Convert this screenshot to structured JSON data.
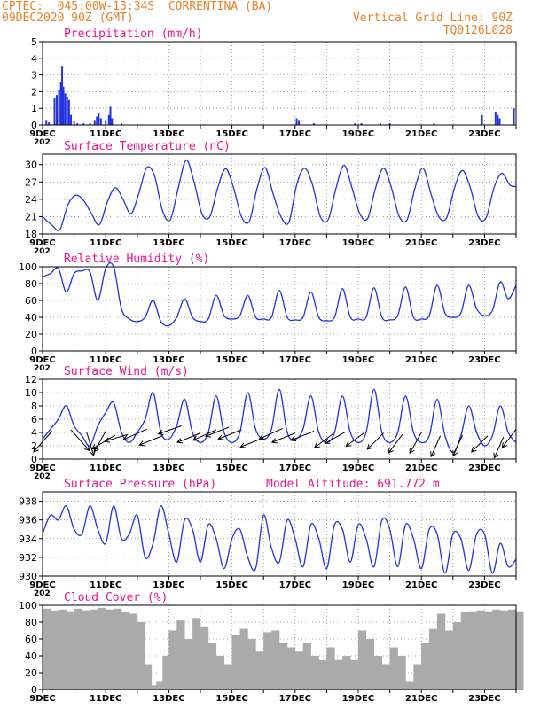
{
  "header": {
    "line1_left": "CPTEC:  045:00W-13:34S  CORRENTINA (BA)",
    "line2_left": "09DEC2020 90Z (GMT)",
    "line1_right": "Vertical Grid Line: 90Z",
    "line2_right": "TQ0126L028"
  },
  "colors": {
    "header": "#e8822a",
    "title": "#e8168c",
    "line": "#2233dd",
    "bar": "#2233dd",
    "cloud": "#aaaaaa",
    "wind_arrow": "#000000"
  },
  "x_axis": {
    "tick_labels": [
      "9DEC",
      "11DEC",
      "13DEC",
      "15DEC",
      "17DEC",
      "19DEC",
      "21DEC",
      "23DEC"
    ],
    "overlap_fragment": "202"
  },
  "chart_data": [
    {
      "type": "bar",
      "title": "Precipitation (mm/h)",
      "ylim": [
        0,
        5
      ],
      "yticks": [
        0,
        1,
        2,
        3,
        4,
        5
      ],
      "grid": true,
      "x_range_days": [
        0,
        15
      ],
      "values": [
        [
          0.12,
          0.3
        ],
        [
          0.2,
          0.15
        ],
        [
          0.38,
          1.6
        ],
        [
          0.45,
          1.8
        ],
        [
          0.52,
          2.1
        ],
        [
          0.58,
          2.6
        ],
        [
          0.62,
          3.5
        ],
        [
          0.66,
          2.3
        ],
        [
          0.72,
          1.9
        ],
        [
          0.78,
          1.7
        ],
        [
          0.84,
          1.5
        ],
        [
          0.9,
          0.6
        ],
        [
          1.0,
          0.2
        ],
        [
          1.1,
          0.1
        ],
        [
          1.3,
          0.1
        ],
        [
          1.5,
          0.1
        ],
        [
          1.65,
          0.3
        ],
        [
          1.72,
          0.5
        ],
        [
          1.78,
          0.7
        ],
        [
          1.85,
          0.4
        ],
        [
          2.0,
          0.3
        ],
        [
          2.1,
          0.6
        ],
        [
          2.15,
          1.1
        ],
        [
          2.2,
          0.4
        ],
        [
          2.5,
          0.1
        ],
        [
          8.05,
          0.4
        ],
        [
          8.12,
          0.3
        ],
        [
          8.6,
          0.1
        ],
        [
          9.9,
          0.1
        ],
        [
          10.1,
          0.1
        ],
        [
          10.7,
          0.1
        ],
        [
          11.0,
          0.1
        ],
        [
          12.4,
          0.1
        ],
        [
          13.92,
          0.6
        ],
        [
          14.35,
          0.8
        ],
        [
          14.42,
          0.6
        ],
        [
          14.48,
          0.4
        ],
        [
          14.93,
          1.0
        ]
      ]
    },
    {
      "type": "line",
      "title": "Surface Temperature (nC)",
      "ylim": [
        18,
        31.8
      ],
      "yticks": [
        18,
        21,
        24,
        27,
        30
      ],
      "grid": true,
      "x": [
        0,
        0.3,
        0.55,
        0.8,
        1.05,
        1.3,
        1.55,
        1.8,
        2.05,
        2.3,
        2.55,
        2.8,
        3.05,
        3.3,
        3.55,
        3.8,
        4.05,
        4.3,
        4.55,
        4.8,
        5.05,
        5.3,
        5.55,
        5.8,
        6.05,
        6.3,
        6.55,
        6.8,
        7.05,
        7.3,
        7.55,
        7.8,
        8.05,
        8.3,
        8.55,
        8.8,
        9.05,
        9.3,
        9.55,
        9.8,
        10.05,
        10.3,
        10.55,
        10.8,
        11.05,
        11.3,
        11.55,
        11.8,
        12.05,
        12.3,
        12.55,
        12.8,
        13.05,
        13.3,
        13.55,
        13.8,
        14.05,
        14.3,
        14.55,
        14.8,
        15.0
      ],
      "y": [
        21,
        19.5,
        18.8,
        23,
        24.7,
        23.8,
        21.5,
        19.6,
        23.5,
        26,
        24,
        21.5,
        25,
        29.5,
        28,
        22,
        20.5,
        26,
        30.8,
        27,
        21.5,
        21,
        26,
        29.3,
        26,
        21,
        20.2,
        26,
        29.5,
        25,
        21,
        20,
        26.5,
        29.4,
        26.5,
        21,
        20.5,
        26,
        29.9,
        26,
        21.5,
        20.7,
        26,
        29.4,
        26,
        21,
        20.5,
        26,
        29.4,
        25,
        21,
        20.8,
        26,
        29,
        26,
        21,
        20.8,
        26,
        28.5,
        26.5,
        26.2
      ]
    },
    {
      "type": "line",
      "title": "Relative Humidity (%)",
      "ylim": [
        0,
        100
      ],
      "yticks": [
        0,
        20,
        40,
        60,
        80,
        100
      ],
      "grid": true,
      "x": [
        0,
        0.25,
        0.5,
        0.75,
        1.0,
        1.25,
        1.5,
        1.75,
        2.0,
        2.25,
        2.5,
        2.75,
        3.0,
        3.25,
        3.5,
        3.75,
        4.0,
        4.25,
        4.5,
        4.75,
        5.0,
        5.25,
        5.5,
        5.75,
        6.0,
        6.25,
        6.5,
        6.75,
        7.0,
        7.25,
        7.5,
        7.75,
        8.0,
        8.25,
        8.5,
        8.75,
        9.0,
        9.25,
        9.5,
        9.75,
        10.0,
        10.25,
        10.5,
        10.75,
        11.0,
        11.25,
        11.5,
        11.75,
        12.0,
        12.25,
        12.5,
        12.75,
        13.0,
        13.25,
        13.5,
        13.75,
        14.0,
        14.25,
        14.5,
        14.75,
        15.0
      ],
      "y": [
        88,
        92,
        98,
        70,
        92,
        95,
        94,
        60,
        98,
        100,
        50,
        38,
        35,
        40,
        60,
        35,
        30,
        40,
        62,
        40,
        35,
        38,
        66,
        42,
        38,
        42,
        66,
        40,
        38,
        40,
        72,
        40,
        37,
        40,
        70,
        40,
        36,
        40,
        74,
        40,
        38,
        40,
        75,
        40,
        37,
        42,
        76,
        40,
        38,
        42,
        78,
        45,
        40,
        45,
        78,
        50,
        42,
        48,
        82,
        62,
        78
      ]
    },
    {
      "type": "line",
      "title": "Surface Wind (m/s)",
      "ylim": [
        0,
        12
      ],
      "yticks": [
        0,
        2,
        4,
        6,
        8,
        10,
        12
      ],
      "grid": true,
      "x": [
        0,
        0.25,
        0.5,
        0.75,
        1.0,
        1.25,
        1.5,
        1.75,
        2.0,
        2.25,
        2.5,
        2.75,
        3.0,
        3.25,
        3.5,
        3.75,
        4.0,
        4.25,
        4.5,
        4.75,
        5.0,
        5.25,
        5.5,
        5.75,
        6.0,
        6.25,
        6.5,
        6.75,
        7.0,
        7.25,
        7.5,
        7.75,
        8.0,
        8.25,
        8.5,
        8.75,
        9.0,
        9.25,
        9.5,
        9.75,
        10.0,
        10.25,
        10.5,
        10.75,
        11.0,
        11.25,
        11.5,
        11.75,
        12.0,
        12.25,
        12.5,
        12.75,
        13.0,
        13.25,
        13.5,
        13.75,
        14.0,
        14.25,
        14.5,
        14.75,
        15.0
      ],
      "y": [
        3,
        4.5,
        6,
        8,
        5,
        3.5,
        2,
        5,
        7,
        8.5,
        4,
        2.5,
        4,
        6,
        10,
        4,
        3,
        5,
        9,
        4,
        2.5,
        4,
        9.5,
        4,
        2.5,
        4,
        10,
        4.5,
        3,
        4.5,
        10.5,
        4,
        3,
        4.5,
        9.5,
        4,
        2.5,
        4,
        9.5,
        4,
        2.5,
        4,
        10.5,
        4,
        2.5,
        4,
        9.5,
        4,
        2.5,
        3.5,
        9,
        3.5,
        1,
        3.5,
        8,
        4,
        2,
        3.5,
        8,
        4,
        2.5
      ],
      "arrows": [
        {
          "x": 0.3,
          "y": 4.2,
          "u": -0.8,
          "v": -0.9
        },
        {
          "x": 0.9,
          "y": 4.4,
          "u": 0.8,
          "v": -0.9
        },
        {
          "x": 1.4,
          "y": 4.0,
          "u": 0.3,
          "v": -1.0
        },
        {
          "x": 2.0,
          "y": 4.2,
          "u": -0.5,
          "v": -0.9
        },
        {
          "x": 2.3,
          "y": 3.6,
          "u": -1.0,
          "v": -0.6
        },
        {
          "x": 2.7,
          "y": 3.7,
          "u": -1.0,
          "v": -0.3
        },
        {
          "x": 3.3,
          "y": 4.5,
          "u": -1.0,
          "v": -0.45
        },
        {
          "x": 3.8,
          "y": 3.5,
          "u": -1.0,
          "v": -0.4
        },
        {
          "x": 4.4,
          "y": 5.0,
          "u": -1.0,
          "v": -0.35
        },
        {
          "x": 5.0,
          "y": 3.9,
          "u": -1.0,
          "v": -0.4
        },
        {
          "x": 5.5,
          "y": 4.4,
          "u": -1.0,
          "v": -0.45
        },
        {
          "x": 5.9,
          "y": 4.8,
          "u": -1.0,
          "v": -0.4
        },
        {
          "x": 6.3,
          "y": 4.4,
          "u": -1.0,
          "v": -0.4
        },
        {
          "x": 7.0,
          "y": 3.2,
          "u": -1.0,
          "v": -0.4
        },
        {
          "x": 7.6,
          "y": 4.6,
          "u": -1.0,
          "v": -0.45
        },
        {
          "x": 8.0,
          "y": 3.9,
          "u": -1.0,
          "v": -0.4
        },
        {
          "x": 8.6,
          "y": 4.2,
          "u": -1.0,
          "v": -0.4
        },
        {
          "x": 9.2,
          "y": 3.8,
          "u": -0.8,
          "v": -0.6
        },
        {
          "x": 9.6,
          "y": 4.1,
          "u": -0.9,
          "v": -0.5
        },
        {
          "x": 10.2,
          "y": 4.0,
          "u": -0.8,
          "v": -0.6
        },
        {
          "x": 10.8,
          "y": 3.9,
          "u": -0.7,
          "v": -0.7
        },
        {
          "x": 11.4,
          "y": 3.7,
          "u": -0.6,
          "v": -0.8
        },
        {
          "x": 12.0,
          "y": 4.0,
          "u": -0.5,
          "v": -0.9
        },
        {
          "x": 12.6,
          "y": 3.5,
          "u": -0.4,
          "v": -0.9
        },
        {
          "x": 13.3,
          "y": 3.6,
          "u": -0.4,
          "v": -0.9
        },
        {
          "x": 14.1,
          "y": 3.5,
          "u": -0.7,
          "v": -0.7
        },
        {
          "x": 14.6,
          "y": 3.3,
          "u": -0.4,
          "v": -0.9
        },
        {
          "x": 15.0,
          "y": 4.5,
          "u": -0.6,
          "v": -0.8
        }
      ]
    },
    {
      "type": "line",
      "title": "Surface Pressure (hPa)",
      "annotation": "Model Altitude: 691.772 m",
      "ylim": [
        930,
        939
      ],
      "yticks": [
        930,
        932,
        934,
        936,
        938
      ],
      "grid": true,
      "x": [
        0,
        0.25,
        0.5,
        0.75,
        1.0,
        1.25,
        1.5,
        1.75,
        2.0,
        2.25,
        2.5,
        2.75,
        3.0,
        3.25,
        3.5,
        3.75,
        4.0,
        4.25,
        4.5,
        4.75,
        5.0,
        5.25,
        5.5,
        5.75,
        6.0,
        6.25,
        6.5,
        6.75,
        7.0,
        7.25,
        7.5,
        7.75,
        8.0,
        8.25,
        8.5,
        8.75,
        9.0,
        9.25,
        9.5,
        9.75,
        10.0,
        10.25,
        10.5,
        10.75,
        11.0,
        11.25,
        11.5,
        11.75,
        12.0,
        12.25,
        12.5,
        12.75,
        13.0,
        13.25,
        13.5,
        13.75,
        14.0,
        14.25,
        14.5,
        14.75,
        15.0
      ],
      "y": [
        934.5,
        936.5,
        936,
        937.5,
        935,
        934.5,
        937.5,
        935,
        933.5,
        937.5,
        934,
        934.5,
        936.5,
        932,
        933.5,
        937.5,
        934.5,
        931.5,
        936,
        935,
        931.5,
        935.5,
        934,
        930.8,
        934,
        935,
        932,
        930.8,
        936.5,
        933,
        931.5,
        936,
        934,
        931,
        935.5,
        934,
        930.8,
        935.5,
        935,
        931.5,
        935.5,
        934,
        931,
        936,
        935,
        931,
        935.5,
        934,
        930.8,
        935,
        934.5,
        930.3,
        934.5,
        934,
        930.6,
        934.5,
        934.5,
        930.3,
        933.5,
        931,
        931.8
      ]
    },
    {
      "type": "bar",
      "title": "Cloud Cover (%)",
      "ylim": [
        0,
        100
      ],
      "yticks": [
        0,
        20,
        40,
        60,
        80,
        100
      ],
      "grid": true,
      "x_range_days": [
        0,
        15
      ],
      "values": [
        [
          0.0,
          96
        ],
        [
          0.25,
          94
        ],
        [
          0.5,
          95
        ],
        [
          0.75,
          93
        ],
        [
          1.0,
          96
        ],
        [
          1.25,
          94
        ],
        [
          1.5,
          95
        ],
        [
          1.75,
          97
        ],
        [
          2.0,
          95
        ],
        [
          2.25,
          96
        ],
        [
          2.5,
          92
        ],
        [
          2.75,
          90
        ],
        [
          3.0,
          80
        ],
        [
          3.2,
          30
        ],
        [
          3.4,
          5
        ],
        [
          3.6,
          10
        ],
        [
          3.8,
          40
        ],
        [
          4.0,
          70
        ],
        [
          4.25,
          82
        ],
        [
          4.5,
          60
        ],
        [
          4.75,
          85
        ],
        [
          5.0,
          75
        ],
        [
          5.25,
          55
        ],
        [
          5.5,
          40
        ],
        [
          5.75,
          30
        ],
        [
          6.0,
          65
        ],
        [
          6.25,
          72
        ],
        [
          6.5,
          60
        ],
        [
          6.75,
          45
        ],
        [
          7.0,
          68
        ],
        [
          7.25,
          70
        ],
        [
          7.5,
          55
        ],
        [
          7.75,
          50
        ],
        [
          8.0,
          45
        ],
        [
          8.25,
          55
        ],
        [
          8.5,
          40
        ],
        [
          8.75,
          35
        ],
        [
          9.0,
          50
        ],
        [
          9.25,
          35
        ],
        [
          9.5,
          40
        ],
        [
          9.75,
          35
        ],
        [
          10.0,
          70
        ],
        [
          10.25,
          60
        ],
        [
          10.5,
          40
        ],
        [
          10.75,
          30
        ],
        [
          11.0,
          50
        ],
        [
          11.25,
          40
        ],
        [
          11.5,
          10
        ],
        [
          11.75,
          30
        ],
        [
          12.0,
          55
        ],
        [
          12.25,
          72
        ],
        [
          12.5,
          90
        ],
        [
          12.75,
          70
        ],
        [
          13.0,
          80
        ],
        [
          13.25,
          92
        ],
        [
          13.5,
          93
        ],
        [
          13.75,
          94
        ],
        [
          14.0,
          93
        ],
        [
          14.25,
          95
        ],
        [
          14.5,
          94
        ],
        [
          14.75,
          95
        ],
        [
          14.98,
          93
        ]
      ]
    }
  ]
}
